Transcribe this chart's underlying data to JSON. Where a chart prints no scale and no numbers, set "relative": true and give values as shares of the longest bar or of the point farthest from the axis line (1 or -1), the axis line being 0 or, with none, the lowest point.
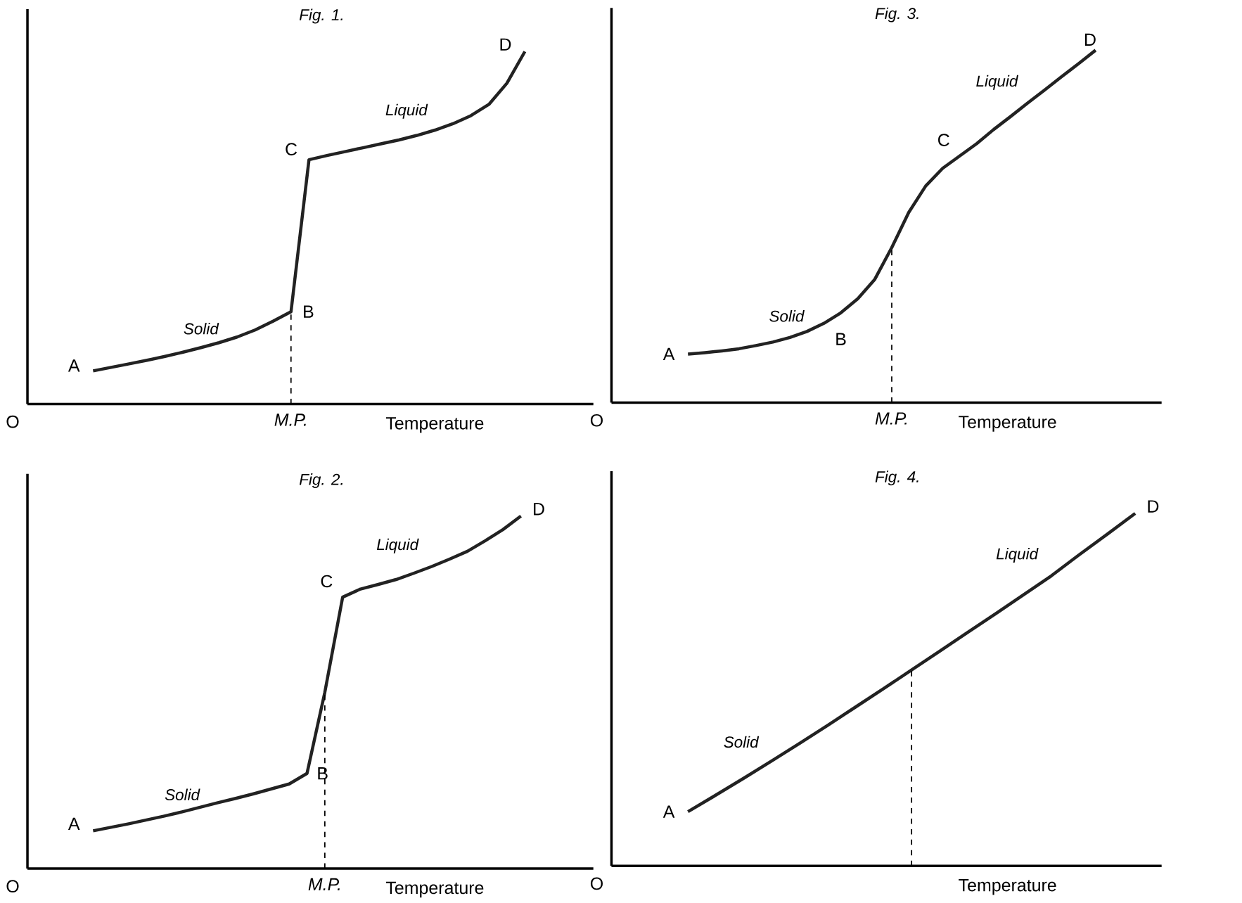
{
  "chart_data": [
    {
      "type": "line",
      "title": "Fig. 1.",
      "xlabel": "Temperature",
      "relative": true,
      "color": "#222222",
      "categories": [
        null,
        null,
        null,
        null,
        null,
        null,
        null,
        null,
        null,
        null,
        null,
        null,
        null,
        null,
        null,
        null,
        null,
        null,
        null,
        null,
        null,
        null,
        null,
        null,
        null
      ],
      "values": [
        0.094,
        0.104,
        0.114,
        0.124,
        0.135,
        0.147,
        0.16,
        0.174,
        0.19,
        0.21,
        0.235,
        0.262,
        0.693,
        0.705,
        0.716,
        0.727,
        0.738,
        0.749,
        0.762,
        0.777,
        0.795,
        0.818,
        0.85,
        0.91,
        1
      ],
      "annotations": [
        "O",
        "A",
        "B",
        "C",
        "D",
        "Solid",
        "Liquid",
        "M.P."
      ]
    },
    {
      "type": "line",
      "title": "Fig. 3.",
      "xlabel": "Temperature",
      "relative": true,
      "color": "#222222",
      "categories": [
        null,
        null,
        null,
        null,
        null,
        null,
        null,
        null,
        null,
        null,
        null,
        null,
        null,
        null,
        null,
        null,
        null,
        null,
        null,
        null,
        null,
        null,
        null,
        null,
        null
      ],
      "values": [
        0.138,
        0.142,
        0.147,
        0.153,
        0.162,
        0.172,
        0.185,
        0.202,
        0.225,
        0.255,
        0.295,
        0.35,
        0.44,
        0.54,
        0.615,
        0.665,
        0.7,
        0.735,
        0.775,
        0.812,
        0.85,
        0.887,
        0.925,
        0.962,
        1
      ],
      "annotations": [
        "O",
        "A",
        "B",
        "C",
        "D",
        "Solid",
        "Liquid",
        "M.P."
      ]
    },
    {
      "type": "line",
      "title": "Fig. 2.",
      "xlabel": "Temperature",
      "relative": true,
      "color": "#222222",
      "categories": [
        null,
        null,
        null,
        null,
        null,
        null,
        null,
        null,
        null,
        null,
        null,
        null,
        null,
        null,
        null,
        null,
        null,
        null,
        null,
        null,
        null,
        null,
        null,
        null,
        null
      ],
      "values": [
        0.107,
        0.117,
        0.127,
        0.138,
        0.149,
        0.161,
        0.174,
        0.187,
        0.199,
        0.212,
        0.226,
        0.24,
        0.27,
        0.5,
        0.77,
        0.793,
        0.806,
        0.82,
        0.838,
        0.857,
        0.878,
        0.9,
        0.93,
        0.962,
        1
      ],
      "annotations": [
        "O",
        "A",
        "B",
        "C",
        "D",
        "Solid",
        "Liquid",
        "M.P."
      ]
    },
    {
      "type": "line",
      "title": "Fig. 4.",
      "xlabel": "Temperature",
      "relative": true,
      "color": "#222222",
      "categories": [
        null,
        null,
        null,
        null,
        null,
        null,
        null,
        null,
        null,
        null,
        null,
        null,
        null,
        null,
        null,
        null,
        null
      ],
      "values": [
        0.154,
        0.201,
        0.249,
        0.298,
        0.348,
        0.399,
        0.451,
        0.503,
        0.556,
        0.609,
        0.662,
        0.715,
        0.769,
        0.823,
        0.883,
        0.941,
        1
      ],
      "annotations": [
        "O",
        "A",
        "D",
        "Solid",
        "Liquid"
      ]
    }
  ]
}
